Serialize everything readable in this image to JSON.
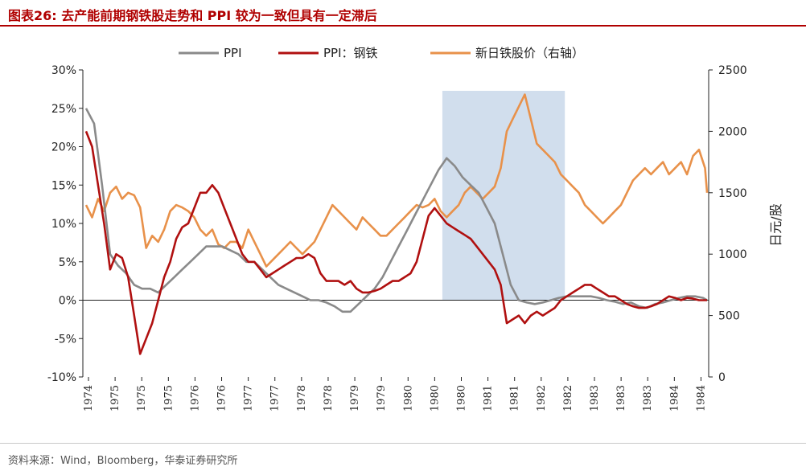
{
  "title": "图表26:  去产能前期钢铁股走势和 PPI 较为一致但具有一定滞后",
  "source": "资料来源：Wind，Bloomberg，华泰证券研究所",
  "chart_data": {
    "type": "line",
    "title": "图表26:  去产能前期钢铁股走势和 PPI 较为一致但具有一定滞后",
    "legend_position": "top",
    "grid": false,
    "x_tick_labels": [
      "1974",
      "1975",
      "1975",
      "1975",
      "1976",
      "1976",
      "1977",
      "1977",
      "1978",
      "1978",
      "1979",
      "1979",
      "1980",
      "1980",
      "1980",
      "1981",
      "1981",
      "1982",
      "1982",
      "1983",
      "1983",
      "1983",
      "1984",
      "1984"
    ],
    "shaded_region": {
      "from_index": 13.5,
      "to_index": 18.1
    },
    "y_left": {
      "ticks": [
        "30%",
        "25%",
        "20%",
        "15%",
        "10%",
        "5%",
        "0%",
        "-5%",
        "-10%"
      ],
      "range": [
        -10,
        30
      ]
    },
    "y_right": {
      "label": "日元/股",
      "ticks": [
        "2500",
        "2000",
        "1500",
        "1000",
        "500",
        "0"
      ],
      "range": [
        0,
        2500
      ]
    },
    "series": [
      {
        "name": "PPI",
        "axis": "left",
        "color": "#8a8a8a",
        "points": [
          [
            0.0,
            25
          ],
          [
            0.4,
            23
          ],
          [
            0.8,
            15
          ],
          [
            1.2,
            6
          ],
          [
            1.6,
            4.5
          ],
          [
            2.0,
            3.5
          ],
          [
            2.4,
            2
          ],
          [
            2.8,
            1.5
          ],
          [
            3.2,
            1.5
          ],
          [
            3.6,
            1
          ],
          [
            4.0,
            2
          ],
          [
            4.4,
            3
          ],
          [
            4.8,
            4
          ],
          [
            5.2,
            5
          ],
          [
            5.6,
            6
          ],
          [
            6.0,
            7
          ],
          [
            6.4,
            7
          ],
          [
            6.8,
            7
          ],
          [
            7.2,
            6.5
          ],
          [
            7.6,
            6
          ],
          [
            8.0,
            5
          ],
          [
            8.4,
            5
          ],
          [
            8.8,
            4
          ],
          [
            9.2,
            3
          ],
          [
            9.6,
            2
          ],
          [
            10.0,
            1.5
          ],
          [
            10.4,
            1
          ],
          [
            10.8,
            0.5
          ],
          [
            11.2,
            0
          ],
          [
            11.6,
            0
          ],
          [
            12.0,
            -0.3
          ],
          [
            12.4,
            -0.8
          ],
          [
            12.8,
            -1.5
          ],
          [
            13.2,
            -1.5
          ],
          [
            13.6,
            -0.5
          ],
          [
            14.0,
            0.5
          ],
          [
            14.4,
            1.5
          ],
          [
            14.8,
            3
          ],
          [
            15.2,
            5
          ],
          [
            15.6,
            7
          ],
          [
            16.0,
            9
          ],
          [
            16.4,
            11
          ],
          [
            16.8,
            13
          ],
          [
            17.2,
            15
          ],
          [
            17.6,
            17
          ],
          [
            18.0,
            18.5
          ],
          [
            18.4,
            17.5
          ],
          [
            18.8,
            16
          ],
          [
            19.2,
            15
          ],
          [
            19.6,
            14
          ],
          [
            20.0,
            12
          ],
          [
            20.4,
            10
          ],
          [
            20.8,
            6
          ],
          [
            21.2,
            2
          ],
          [
            21.6,
            0
          ],
          [
            22.0,
            -0.3
          ],
          [
            22.4,
            -0.5
          ],
          [
            22.8,
            -0.3
          ],
          [
            23.2,
            0
          ],
          [
            23.6,
            0.3
          ],
          [
            24.0,
            0.5
          ],
          [
            24.4,
            0.5
          ],
          [
            24.8,
            0.5
          ],
          [
            25.2,
            0.5
          ],
          [
            25.6,
            0.3
          ],
          [
            26.0,
            0
          ],
          [
            26.4,
            -0.2
          ],
          [
            26.8,
            -0.5
          ],
          [
            27.2,
            -0.3
          ],
          [
            27.6,
            -0.8
          ],
          [
            28.0,
            -1
          ],
          [
            28.4,
            -0.5
          ],
          [
            28.8,
            -0.3
          ],
          [
            29.2,
            0
          ],
          [
            29.6,
            0.3
          ],
          [
            30.0,
            0.5
          ],
          [
            30.4,
            0.5
          ],
          [
            30.8,
            0.3
          ],
          [
            31.0,
            0
          ]
        ]
      },
      {
        "name": "PPI：钢铁",
        "axis": "left",
        "color": "#b01010",
        "points": [
          [
            0.0,
            22
          ],
          [
            0.3,
            20
          ],
          [
            0.6,
            15
          ],
          [
            0.9,
            10
          ],
          [
            1.2,
            4
          ],
          [
            1.5,
            6
          ],
          [
            1.8,
            5.5
          ],
          [
            2.1,
            3
          ],
          [
            2.4,
            -2
          ],
          [
            2.7,
            -7
          ],
          [
            3.0,
            -5
          ],
          [
            3.3,
            -3
          ],
          [
            3.6,
            0
          ],
          [
            3.9,
            3
          ],
          [
            4.2,
            5
          ],
          [
            4.5,
            8
          ],
          [
            4.8,
            9.5
          ],
          [
            5.1,
            10
          ],
          [
            5.4,
            12
          ],
          [
            5.7,
            14
          ],
          [
            6.0,
            14
          ],
          [
            6.3,
            15
          ],
          [
            6.6,
            14
          ],
          [
            6.9,
            12
          ],
          [
            7.2,
            10
          ],
          [
            7.5,
            8
          ],
          [
            7.8,
            6
          ],
          [
            8.1,
            5
          ],
          [
            8.4,
            5
          ],
          [
            8.7,
            4
          ],
          [
            9.0,
            3
          ],
          [
            9.3,
            3.5
          ],
          [
            9.6,
            4
          ],
          [
            9.9,
            4.5
          ],
          [
            10.2,
            5
          ],
          [
            10.5,
            5.5
          ],
          [
            10.8,
            5.5
          ],
          [
            11.1,
            6
          ],
          [
            11.4,
            5.5
          ],
          [
            11.7,
            3.5
          ],
          [
            12.0,
            2.5
          ],
          [
            12.3,
            2.5
          ],
          [
            12.6,
            2.5
          ],
          [
            12.9,
            2
          ],
          [
            13.2,
            2.5
          ],
          [
            13.5,
            1.5
          ],
          [
            13.8,
            1
          ],
          [
            14.1,
            1
          ],
          [
            14.4,
            1.2
          ],
          [
            14.7,
            1.5
          ],
          [
            15.0,
            2
          ],
          [
            15.3,
            2.5
          ],
          [
            15.6,
            2.5
          ],
          [
            15.9,
            3
          ],
          [
            16.2,
            3.5
          ],
          [
            16.5,
            5
          ],
          [
            16.8,
            8
          ],
          [
            17.1,
            11
          ],
          [
            17.4,
            12
          ],
          [
            17.7,
            11
          ],
          [
            18.0,
            10
          ],
          [
            18.3,
            9.5
          ],
          [
            18.6,
            9
          ],
          [
            18.9,
            8.5
          ],
          [
            19.2,
            8
          ],
          [
            19.5,
            7
          ],
          [
            19.8,
            6
          ],
          [
            20.1,
            5
          ],
          [
            20.4,
            4
          ],
          [
            20.7,
            2
          ],
          [
            21.0,
            -3
          ],
          [
            21.3,
            -2.5
          ],
          [
            21.6,
            -2
          ],
          [
            21.9,
            -3
          ],
          [
            22.2,
            -2
          ],
          [
            22.5,
            -1.5
          ],
          [
            22.8,
            -2
          ],
          [
            23.1,
            -1.5
          ],
          [
            23.4,
            -1
          ],
          [
            23.7,
            0
          ],
          [
            24.0,
            0.5
          ],
          [
            24.3,
            1
          ],
          [
            24.6,
            1.5
          ],
          [
            24.9,
            2
          ],
          [
            25.2,
            2
          ],
          [
            25.5,
            1.5
          ],
          [
            25.8,
            1
          ],
          [
            26.1,
            0.5
          ],
          [
            26.4,
            0.5
          ],
          [
            26.7,
            0
          ],
          [
            27.0,
            -0.5
          ],
          [
            27.3,
            -0.8
          ],
          [
            27.6,
            -1
          ],
          [
            27.9,
            -1
          ],
          [
            28.2,
            -0.8
          ],
          [
            28.5,
            -0.5
          ],
          [
            28.8,
            0
          ],
          [
            29.1,
            0.5
          ],
          [
            29.4,
            0.3
          ],
          [
            29.7,
            0
          ],
          [
            30.0,
            0.3
          ],
          [
            30.3,
            0.2
          ],
          [
            30.6,
            0
          ],
          [
            31.0,
            0
          ]
        ]
      },
      {
        "name": "新日铁股价（右轴）",
        "axis": "right",
        "color": "#e8914a",
        "points": [
          [
            0.0,
            1400
          ],
          [
            0.3,
            1300
          ],
          [
            0.6,
            1450
          ],
          [
            0.9,
            1350
          ],
          [
            1.2,
            1500
          ],
          [
            1.5,
            1550
          ],
          [
            1.8,
            1450
          ],
          [
            2.1,
            1500
          ],
          [
            2.4,
            1480
          ],
          [
            2.7,
            1380
          ],
          [
            3.0,
            1050
          ],
          [
            3.3,
            1150
          ],
          [
            3.6,
            1100
          ],
          [
            3.9,
            1200
          ],
          [
            4.2,
            1350
          ],
          [
            4.5,
            1400
          ],
          [
            4.8,
            1380
          ],
          [
            5.1,
            1350
          ],
          [
            5.4,
            1300
          ],
          [
            5.7,
            1200
          ],
          [
            6.0,
            1150
          ],
          [
            6.3,
            1200
          ],
          [
            6.6,
            1080
          ],
          [
            6.9,
            1050
          ],
          [
            7.2,
            1100
          ],
          [
            7.5,
            1100
          ],
          [
            7.8,
            1050
          ],
          [
            8.1,
            1200
          ],
          [
            8.4,
            1100
          ],
          [
            8.7,
            1000
          ],
          [
            9.0,
            900
          ],
          [
            9.3,
            950
          ],
          [
            9.6,
            1000
          ],
          [
            9.9,
            1050
          ],
          [
            10.2,
            1100
          ],
          [
            10.5,
            1050
          ],
          [
            10.8,
            1000
          ],
          [
            11.1,
            1050
          ],
          [
            11.4,
            1100
          ],
          [
            11.7,
            1200
          ],
          [
            12.0,
            1300
          ],
          [
            12.3,
            1400
          ],
          [
            12.6,
            1350
          ],
          [
            12.9,
            1300
          ],
          [
            13.2,
            1250
          ],
          [
            13.5,
            1200
          ],
          [
            13.8,
            1300
          ],
          [
            14.1,
            1250
          ],
          [
            14.4,
            1200
          ],
          [
            14.7,
            1150
          ],
          [
            15.0,
            1150
          ],
          [
            15.3,
            1200
          ],
          [
            15.6,
            1250
          ],
          [
            15.9,
            1300
          ],
          [
            16.2,
            1350
          ],
          [
            16.5,
            1400
          ],
          [
            16.8,
            1380
          ],
          [
            17.1,
            1400
          ],
          [
            17.4,
            1450
          ],
          [
            17.7,
            1350
          ],
          [
            18.0,
            1300
          ],
          [
            18.3,
            1350
          ],
          [
            18.6,
            1400
          ],
          [
            18.9,
            1500
          ],
          [
            19.2,
            1550
          ],
          [
            19.5,
            1500
          ],
          [
            19.8,
            1450
          ],
          [
            20.1,
            1500
          ],
          [
            20.4,
            1550
          ],
          [
            20.7,
            1700
          ],
          [
            21.0,
            2000
          ],
          [
            21.3,
            2100
          ],
          [
            21.6,
            2200
          ],
          [
            21.9,
            2300
          ],
          [
            22.2,
            2100
          ],
          [
            22.5,
            1900
          ],
          [
            22.8,
            1850
          ],
          [
            23.1,
            1800
          ],
          [
            23.4,
            1750
          ],
          [
            23.7,
            1650
          ],
          [
            24.0,
            1600
          ],
          [
            24.3,
            1550
          ],
          [
            24.6,
            1500
          ],
          [
            24.9,
            1400
          ],
          [
            25.2,
            1350
          ],
          [
            25.5,
            1300
          ],
          [
            25.8,
            1250
          ],
          [
            26.1,
            1300
          ],
          [
            26.4,
            1350
          ],
          [
            26.7,
            1400
          ],
          [
            27.0,
            1500
          ],
          [
            27.3,
            1600
          ],
          [
            27.6,
            1650
          ],
          [
            27.9,
            1700
          ],
          [
            28.2,
            1650
          ],
          [
            28.5,
            1700
          ],
          [
            28.8,
            1750
          ],
          [
            29.1,
            1650
          ],
          [
            29.4,
            1700
          ],
          [
            29.7,
            1750
          ],
          [
            30.0,
            1650
          ],
          [
            30.3,
            1800
          ],
          [
            30.6,
            1850
          ],
          [
            30.9,
            1700
          ],
          [
            31.0,
            1500
          ]
        ]
      }
    ]
  }
}
